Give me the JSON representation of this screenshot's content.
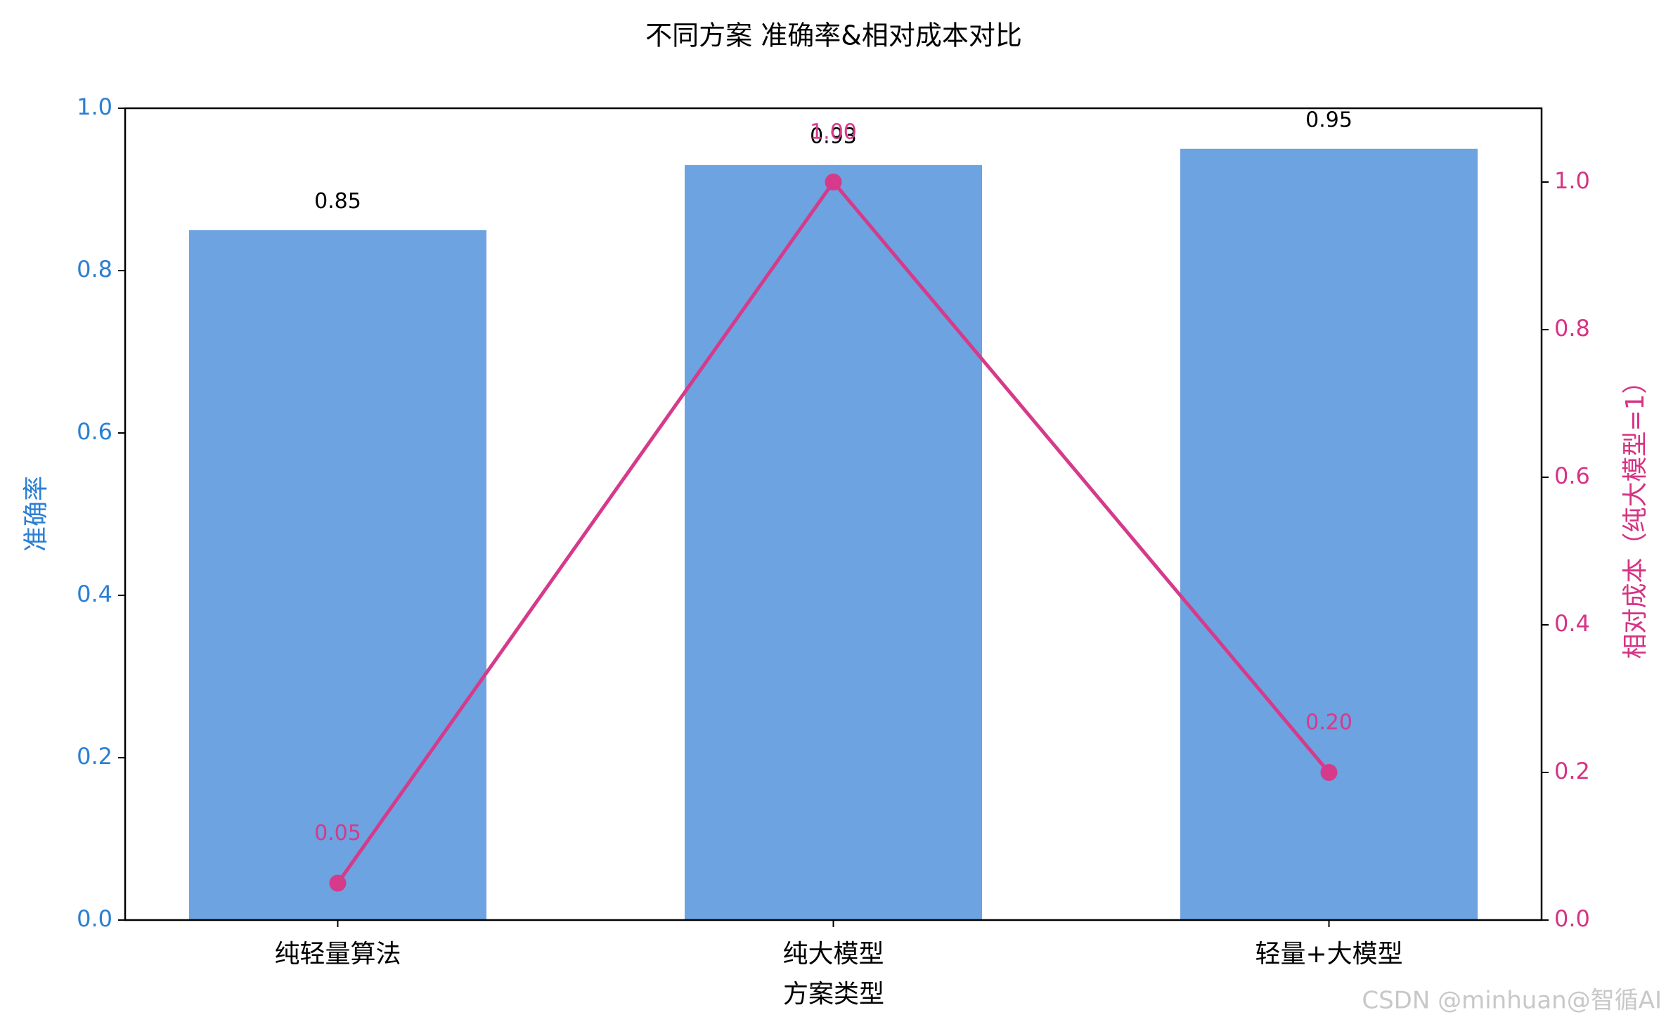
{
  "chart_data": {
    "type": "bar",
    "title": "不同方案 准确率&相对成本对比",
    "xlabel": "方案类型",
    "ylabel": "准确率",
    "y2label": "相对成本（纯大模型=1）",
    "categories": [
      "纯轻量算法",
      "纯大模型",
      "轻量+大模型"
    ],
    "series": [
      {
        "type": "bar",
        "color": "#6ca3e0",
        "label_color": "#000000",
        "values": [
          0.85,
          0.93,
          0.95
        ]
      },
      {
        "type": "line",
        "axis": "y2",
        "color": "#d63a8a",
        "values": [
          0.05,
          1.0,
          0.2
        ],
        "value_labels": [
          "0.05",
          "1.00",
          "0.20"
        ]
      }
    ],
    "ylim": [
      0,
      1
    ],
    "yticks": [
      {
        "value": 0,
        "label": "0.0"
      },
      0.2,
      0.4,
      0.6,
      0.8,
      {
        "value": 1,
        "label": "1.0"
      }
    ],
    "y2lim": [
      0,
      1.1
    ],
    "y2ticks": [
      {
        "value": 0,
        "label": "0.0"
      },
      0.2,
      0.4,
      0.6,
      0.8,
      {
        "value": 1,
        "label": "1.0"
      }
    ],
    "y_color": "#2a7fd4",
    "y2_color": "#d63384",
    "watermark": "CSDN @minhuan@智循AI"
  }
}
